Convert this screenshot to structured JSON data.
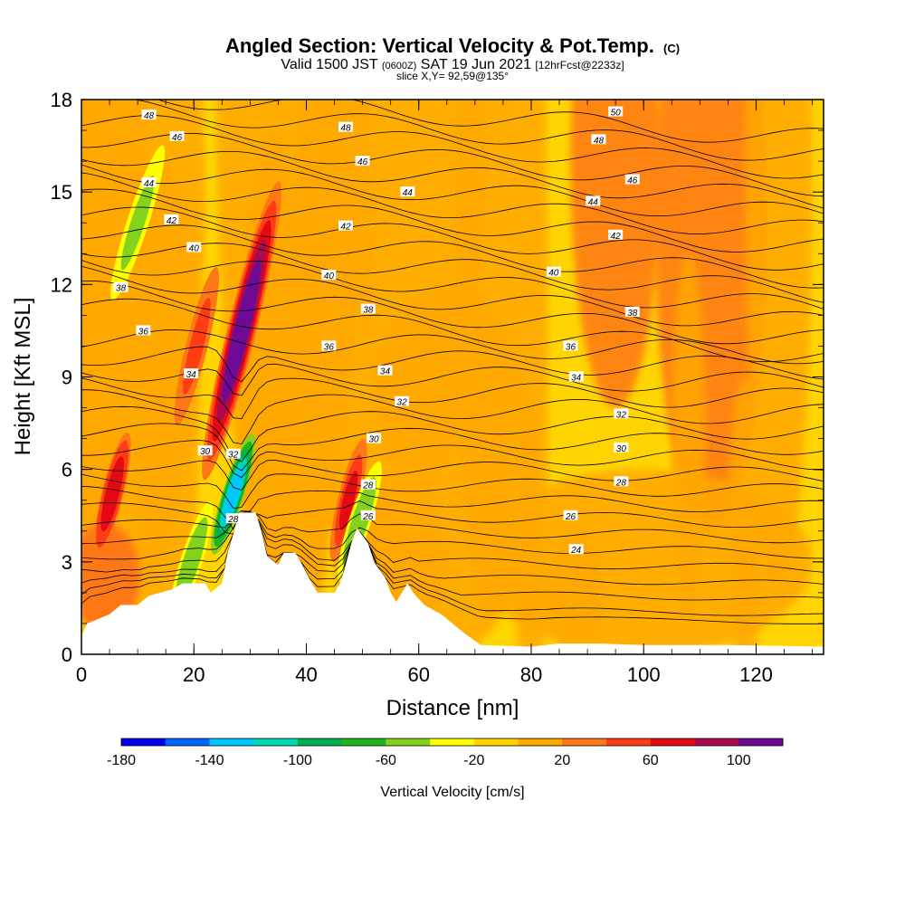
{
  "figure": {
    "title": "Angled Section: Vertical Velocity & Pot.Temp.",
    "title_mark": "(C)",
    "subtitle_valid": "Valid 1500 JST",
    "subtitle_zulu": "(0600Z)",
    "subtitle_date": "SAT 19 Jun 2021",
    "subtitle_fcst": "[12hrFcst@2233z]",
    "slice_label": "slice X,Y= 92,59@135°"
  },
  "chart_data": {
    "type": "heatmap",
    "xlabel": "Distance [nm]",
    "ylabel": "Height [Kft MSL]",
    "xlim": [
      0,
      132
    ],
    "ylim": [
      0,
      18
    ],
    "x_ticks": [
      0,
      20,
      40,
      60,
      80,
      100,
      120
    ],
    "y_ticks": [
      0,
      3,
      6,
      9,
      12,
      15,
      18
    ],
    "grid": false,
    "colorbar": {
      "label": "Vertical Velocity [cm/s]",
      "range": [
        -180,
        120
      ],
      "tick_values": [
        -180,
        -140,
        -100,
        -60,
        -20,
        20,
        60,
        100
      ],
      "colors": [
        "#0000ee",
        "#0066ff",
        "#00c8ff",
        "#00d8b0",
        "#00b050",
        "#22b41e",
        "#84d21e",
        "#ffff00",
        "#ffd400",
        "#ffa800",
        "#ff7818",
        "#ff3c14",
        "#e40a14",
        "#aa0a50",
        "#6e0a96"
      ]
    },
    "background_value_range": [
      0,
      20
    ],
    "velocity_features": [
      {
        "name": "updraft",
        "x": 28.5,
        "y": 10.5,
        "peak": 110
      },
      {
        "name": "updraft",
        "x": 5.5,
        "y": 5.2,
        "peak": 70
      },
      {
        "name": "updraft",
        "x": 20.5,
        "y": 10.0,
        "peak": 50
      },
      {
        "name": "updraft",
        "x": 47.5,
        "y": 5.0,
        "peak": 65
      },
      {
        "name": "downdraft",
        "x": 27.0,
        "y": 5.2,
        "peak": -140
      },
      {
        "name": "downdraft",
        "x": 10.0,
        "y": 14.0,
        "peak": -50
      },
      {
        "name": "downdraft",
        "x": 19.5,
        "y": 3.0,
        "peak": -60
      },
      {
        "name": "downdraft",
        "x": 49.5,
        "y": 4.3,
        "peak": -60
      }
    ],
    "potential_temperature_contours": {
      "units": "C",
      "levels": [
        24,
        26,
        28,
        30,
        32,
        34,
        36,
        38,
        40,
        42,
        44,
        46,
        48,
        50
      ],
      "labels": [
        {
          "text": "48",
          "x": 12,
          "y": 17.5
        },
        {
          "text": "46",
          "x": 17,
          "y": 16.8
        },
        {
          "text": "44",
          "x": 12,
          "y": 15.3
        },
        {
          "text": "42",
          "x": 16,
          "y": 14.1
        },
        {
          "text": "40",
          "x": 20,
          "y": 13.2
        },
        {
          "text": "38",
          "x": 7,
          "y": 11.9
        },
        {
          "text": "36",
          "x": 11,
          "y": 10.5
        },
        {
          "text": "34",
          "x": 19.5,
          "y": 9.1
        },
        {
          "text": "30",
          "x": 22,
          "y": 6.6
        },
        {
          "text": "32",
          "x": 27,
          "y": 6.5
        },
        {
          "text": "28",
          "x": 27,
          "y": 4.4
        },
        {
          "text": "48",
          "x": 47,
          "y": 17.1
        },
        {
          "text": "46",
          "x": 50,
          "y": 16.0
        },
        {
          "text": "44",
          "x": 58,
          "y": 15.0
        },
        {
          "text": "42",
          "x": 47,
          "y": 13.9
        },
        {
          "text": "40",
          "x": 44,
          "y": 12.3
        },
        {
          "text": "38",
          "x": 51,
          "y": 11.2
        },
        {
          "text": "36",
          "x": 44,
          "y": 10.0
        },
        {
          "text": "34",
          "x": 54,
          "y": 9.2
        },
        {
          "text": "32",
          "x": 57,
          "y": 8.2
        },
        {
          "text": "30",
          "x": 52,
          "y": 7.0
        },
        {
          "text": "28",
          "x": 51,
          "y": 5.5
        },
        {
          "text": "26",
          "x": 51,
          "y": 4.5
        },
        {
          "text": "50",
          "x": 95,
          "y": 17.6
        },
        {
          "text": "48",
          "x": 92,
          "y": 16.7
        },
        {
          "text": "46",
          "x": 98,
          "y": 15.4
        },
        {
          "text": "44",
          "x": 91,
          "y": 14.7
        },
        {
          "text": "42",
          "x": 95,
          "y": 13.6
        },
        {
          "text": "40",
          "x": 84,
          "y": 12.4
        },
        {
          "text": "38",
          "x": 98,
          "y": 11.1
        },
        {
          "text": "36",
          "x": 87,
          "y": 10.0
        },
        {
          "text": "34",
          "x": 88,
          "y": 9.0
        },
        {
          "text": "32",
          "x": 96,
          "y": 7.8
        },
        {
          "text": "30",
          "x": 96,
          "y": 6.7
        },
        {
          "text": "28",
          "x": 96,
          "y": 5.6
        },
        {
          "text": "26",
          "x": 87,
          "y": 4.5
        },
        {
          "text": "24",
          "x": 88,
          "y": 3.4
        }
      ]
    },
    "terrain": {
      "units": "Kft",
      "profile": [
        [
          0,
          0.6
        ],
        [
          1,
          1.0
        ],
        [
          5,
          1.3
        ],
        [
          7,
          1.6
        ],
        [
          10,
          1.6
        ],
        [
          12,
          1.9
        ],
        [
          16,
          2.1
        ],
        [
          18,
          2.3
        ],
        [
          22,
          2.3
        ],
        [
          23,
          2.0
        ],
        [
          25,
          2.3
        ],
        [
          26,
          3.3
        ],
        [
          27,
          3.9
        ],
        [
          28,
          4.6
        ],
        [
          31,
          4.6
        ],
        [
          32,
          4.0
        ],
        [
          33,
          3.2
        ],
        [
          35,
          2.9
        ],
        [
          36,
          3.3
        ],
        [
          38,
          3.3
        ],
        [
          39,
          3.0
        ],
        [
          41,
          2.3
        ],
        [
          42,
          2.0
        ],
        [
          45,
          2.0
        ],
        [
          46,
          2.3
        ],
        [
          47,
          2.9
        ],
        [
          48,
          3.6
        ],
        [
          49,
          4.1
        ],
        [
          51,
          3.6
        ],
        [
          52,
          3.0
        ],
        [
          54,
          2.5
        ],
        [
          55,
          2.0
        ],
        [
          56,
          1.7
        ],
        [
          57,
          2.0
        ],
        [
          58,
          2.3
        ],
        [
          59,
          2.0
        ],
        [
          61,
          1.6
        ],
        [
          64,
          1.3
        ],
        [
          66,
          1.0
        ],
        [
          68,
          0.7
        ],
        [
          71,
          0.3
        ],
        [
          80,
          0.25
        ],
        [
          85,
          0.35
        ],
        [
          92,
          0.35
        ],
        [
          100,
          0.3
        ],
        [
          115,
          0.3
        ],
        [
          132,
          0.25
        ]
      ]
    }
  }
}
